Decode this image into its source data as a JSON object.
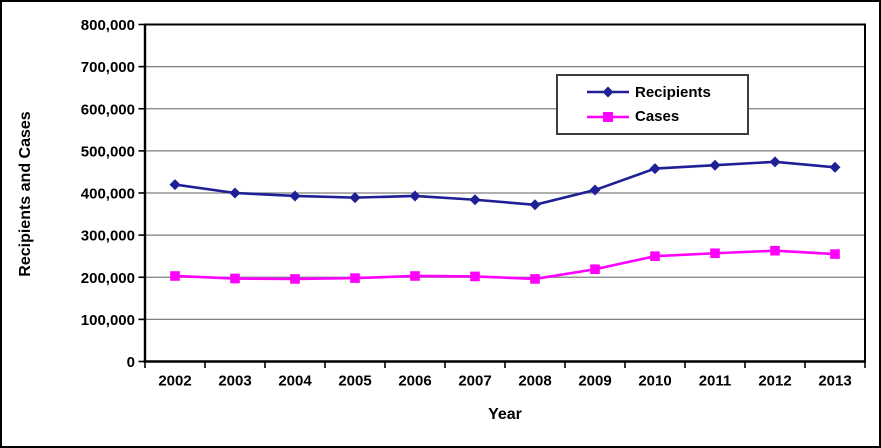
{
  "figure": {
    "background": "#FFFFFF",
    "outer_border_color": "#000000"
  },
  "chart_data": {
    "type": "line",
    "title": "",
    "xlabel": "Year",
    "ylabel": "Recipients and Cases",
    "categories": [
      "2002",
      "2003",
      "2004",
      "2005",
      "2006",
      "2007",
      "2008",
      "2009",
      "2010",
      "2011",
      "2012",
      "2013"
    ],
    "series": [
      {
        "name": "Recipients",
        "color": "#1F1F96",
        "marker": "diamond",
        "values": [
          420000,
          400000,
          393000,
          389000,
          393000,
          384000,
          372000,
          407000,
          458000,
          466000,
          474000,
          461000
        ]
      },
      {
        "name": "Cases",
        "color": "#FF00FF",
        "marker": "square",
        "values": [
          203000,
          197000,
          196000,
          198000,
          203000,
          202000,
          196000,
          219000,
          250000,
          257000,
          263000,
          255000
        ]
      }
    ],
    "ylim": [
      0,
      800000
    ],
    "y_tick_interval": 100000,
    "y_tick_labels": [
      "0",
      "100,000",
      "200,000",
      "300,000",
      "400,000",
      "500,000",
      "600,000",
      "700,000",
      "800,000"
    ],
    "grid": "horizontal",
    "gridline_color": "#7F7F7F",
    "axis_color": "#000000",
    "legend_position": "inside-top-right"
  }
}
